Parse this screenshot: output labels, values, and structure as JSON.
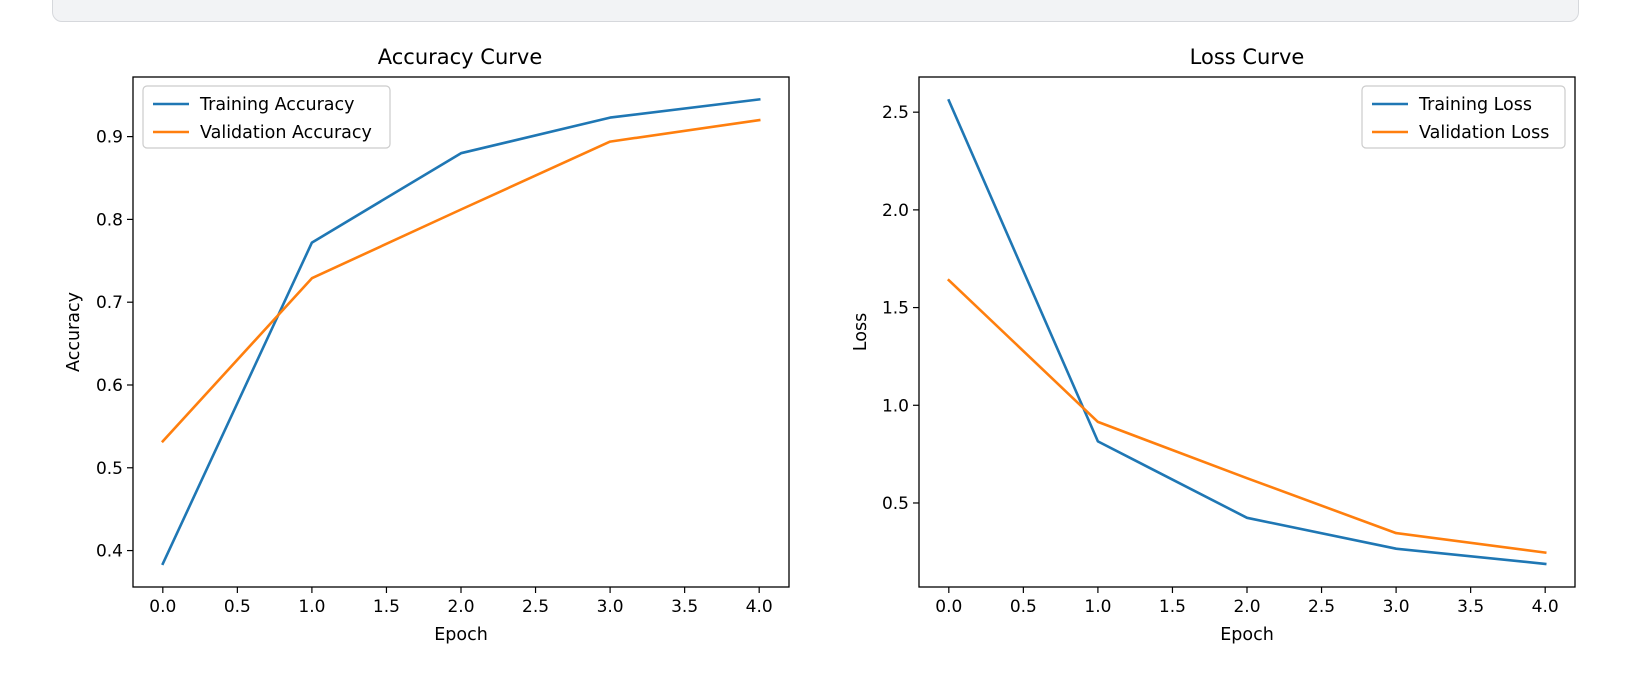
{
  "colors": {
    "training": "#1f77b4",
    "validation": "#ff7f0e"
  },
  "chart_data": [
    {
      "type": "line",
      "title": "Accuracy Curve",
      "xlabel": "Epoch",
      "ylabel": "Accuracy",
      "x": [
        0,
        1,
        2,
        3,
        4
      ],
      "xlim": [
        -0.2,
        4.2
      ],
      "ylim": [
        0.356,
        0.972
      ],
      "xticks": [
        0.0,
        0.5,
        1.0,
        1.5,
        2.0,
        2.5,
        3.0,
        3.5,
        4.0
      ],
      "xtick_labels": [
        "0.0",
        "0.5",
        "1.0",
        "1.5",
        "2.0",
        "2.5",
        "3.0",
        "3.5",
        "4.0"
      ],
      "yticks": [
        0.4,
        0.5,
        0.6,
        0.7,
        0.8,
        0.9
      ],
      "ytick_labels": [
        "0.4",
        "0.5",
        "0.6",
        "0.7",
        "0.8",
        "0.9"
      ],
      "legend_position": "upper left",
      "grid": false,
      "series": [
        {
          "name": "Training Accuracy",
          "color": "#1f77b4",
          "values": [
            0.384,
            0.772,
            0.88,
            0.923,
            0.945
          ]
        },
        {
          "name": "Validation Accuracy",
          "color": "#ff7f0e",
          "values": [
            0.532,
            0.729,
            0.812,
            0.894,
            0.92
          ]
        }
      ]
    },
    {
      "type": "line",
      "title": "Loss Curve",
      "xlabel": "Epoch",
      "ylabel": "Loss",
      "x": [
        0,
        1,
        2,
        3,
        4
      ],
      "xlim": [
        -0.2,
        4.2
      ],
      "ylim": [
        0.07,
        2.68
      ],
      "xticks": [
        0.0,
        0.5,
        1.0,
        1.5,
        2.0,
        2.5,
        3.0,
        3.5,
        4.0
      ],
      "xtick_labels": [
        "0.0",
        "0.5",
        "1.0",
        "1.5",
        "2.0",
        "2.5",
        "3.0",
        "3.5",
        "4.0"
      ],
      "yticks": [
        0.5,
        1.0,
        1.5,
        2.0,
        2.5
      ],
      "ytick_labels": [
        "0.5",
        "1.0",
        "1.5",
        "2.0",
        "2.5"
      ],
      "legend_position": "upper right",
      "grid": false,
      "series": [
        {
          "name": "Training Loss",
          "color": "#1f77b4",
          "values": [
            2.56,
            0.815,
            0.424,
            0.266,
            0.188
          ]
        },
        {
          "name": "Validation Loss",
          "color": "#ff7f0e",
          "values": [
            1.64,
            0.915,
            0.627,
            0.346,
            0.246
          ]
        }
      ]
    }
  ]
}
